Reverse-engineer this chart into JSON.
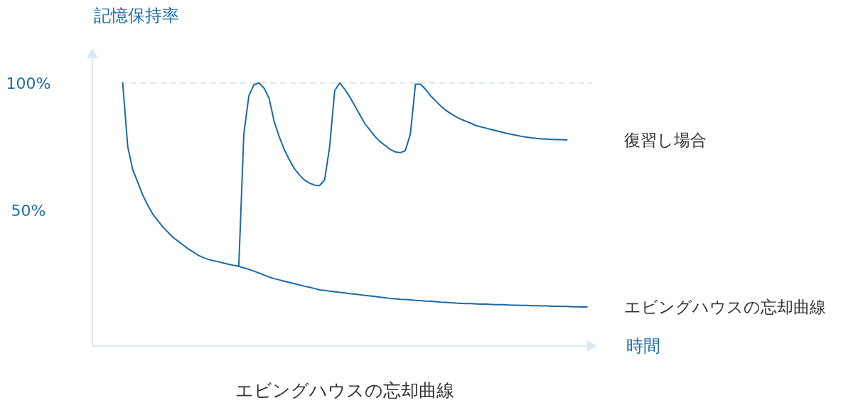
{
  "chart_data": {
    "type": "line",
    "title": "エビングハウスの忘却曲線",
    "xlabel": "時間",
    "ylabel": "記憶保持率",
    "categories": [
      null,
      null,
      null,
      null,
      null,
      null,
      null,
      null,
      null,
      null,
      null,
      null,
      null,
      null,
      null,
      null,
      null,
      null,
      null,
      null,
      null,
      null,
      null,
      null,
      null,
      null,
      null,
      null,
      null,
      null,
      null,
      null,
      null,
      null,
      null,
      null,
      null,
      null,
      null,
      null,
      null,
      null,
      null,
      null,
      null,
      null,
      null,
      null,
      null,
      null,
      null,
      null,
      null,
      null,
      null,
      null,
      null,
      null,
      null,
      null,
      null,
      null,
      null,
      null,
      null,
      null,
      null,
      null,
      null,
      null,
      null,
      null,
      null,
      null,
      null,
      null,
      null,
      null,
      null,
      null,
      null,
      null,
      null,
      null,
      null,
      null,
      null,
      null,
      null,
      null,
      null,
      null,
      null,
      null,
      null,
      null,
      null,
      null,
      null,
      null,
      null
    ],
    "ylim": [
      -3,
      113
    ],
    "yticks": [
      {
        "value": 50,
        "label": "50%"
      },
      {
        "value": 100,
        "label": "100%"
      }
    ],
    "tick_labels": "y",
    "ref_lines": [
      {
        "axis": "y",
        "value": 100,
        "color": "#cfe0ec",
        "line_style": "dashed"
      }
    ],
    "series": [
      {
        "name": "復習し場合",
        "color": "#1a6aa8",
        "values": [
          null,
          null,
          null,
          null,
          null,
          null,
          null,
          null,
          null,
          null,
          null,
          null,
          null,
          null,
          null,
          null,
          null,
          null,
          null,
          null,
          null,
          null,
          null,
          null,
          null,
          null,
          null,
          null,
          null,
          28.2,
          80,
          95,
          99.3,
          100,
          98,
          94,
          85,
          79,
          74,
          70,
          66.5,
          64,
          62,
          60.8,
          60,
          59.8,
          62,
          75,
          97,
          100,
          97.5,
          94.5,
          91,
          87.5,
          84,
          81.5,
          79,
          77,
          75.5,
          74,
          73,
          72.7,
          73.5,
          80,
          99.5,
          99.5,
          97.5,
          95,
          93,
          91,
          89.3,
          88,
          86.8,
          85.8,
          85,
          84.2,
          83.3,
          82.8,
          82.3,
          81.8,
          81.3,
          80.8,
          80.3,
          79.9,
          79.5,
          79.1,
          78.8,
          78.5,
          78.3,
          78.1,
          78,
          77.9,
          77.8,
          77.8,
          77.7,
          null,
          null,
          null,
          null,
          null,
          null
        ]
      },
      {
        "name": "エビングハウスの忘却曲線",
        "color": "#1a6aa8",
        "values": [
          null,
          null,
          null,
          null,
          null,
          null,
          100,
          75,
          66,
          61,
          56,
          52,
          48.5,
          46,
          43.5,
          41.5,
          39.5,
          38,
          36.5,
          35,
          33.8,
          32.5,
          31.6,
          30.9,
          30.4,
          30,
          29.5,
          29,
          28.6,
          28.2,
          27.6,
          27,
          26.3,
          25.6,
          24.8,
          24,
          23.4,
          22.9,
          22.4,
          21.9,
          21.4,
          20.9,
          20.4,
          20,
          19.5,
          19,
          18.8,
          18.5,
          18.3,
          18,
          17.8,
          17.5,
          17.3,
          17.1,
          16.8,
          16.6,
          16.4,
          16.1,
          15.9,
          15.6,
          15.5,
          15.3,
          15.2,
          15.1,
          14.9,
          14.8,
          14.6,
          14.5,
          14.4,
          14.2,
          14.1,
          14,
          13.8,
          13.7,
          13.6,
          13.6,
          13.5,
          13.4,
          13.4,
          13.3,
          13.2,
          13.2,
          13.1,
          13,
          13,
          12.9,
          12.9,
          12.8,
          12.8,
          12.7,
          12.7,
          12.6,
          12.6,
          12.5,
          12.5,
          12.4,
          12.4,
          12.3,
          12.3,
          null,
          null
        ]
      }
    ]
  }
}
